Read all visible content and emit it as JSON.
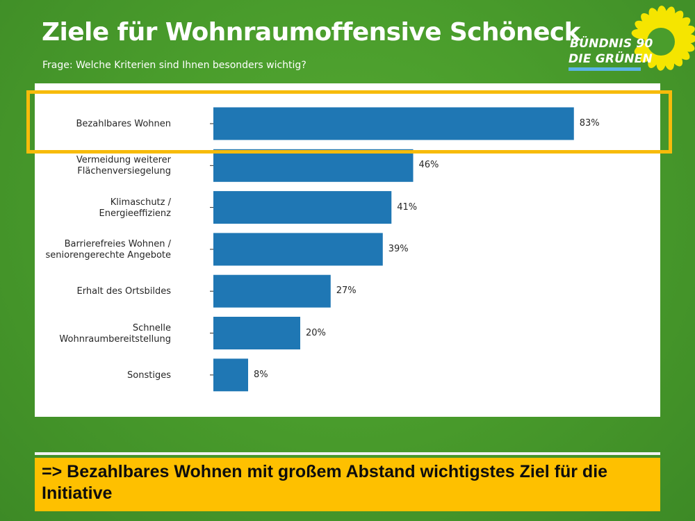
{
  "slide": {
    "title": "Ziele für Wohnraumoffensive Schöneck",
    "subtitle": "Frage: Welche Kriterien sind Ihnen besonders wichtig?",
    "conclusion": "=> Bezahlbares Wohnen mit großem Abstand wichtigstes Ziel für die Initiative"
  },
  "logo": {
    "line1": "BÜNDNIS 90",
    "line2": "DIE GRÜNEN",
    "icon": "sunflower-icon",
    "colors": {
      "petals": "#f5e500",
      "bar": "#5ab4e5"
    }
  },
  "colors": {
    "bar": "#1f77b4",
    "highlight": "#f7bb0b",
    "conclusion_bg": "#fec000"
  },
  "chart_data": {
    "type": "bar",
    "orientation": "horizontal",
    "title": "",
    "xlabel": "",
    "ylabel": "",
    "xlim": [
      0,
      100
    ],
    "grid": false,
    "highlighted_category": "Bezahlbares Wohnen",
    "categories": [
      "Bezahlbares Wohnen",
      "Vermeidung weiterer\nFlächenversiegelung",
      "Klimaschutz /\nEnergieeffizienz",
      "Barrierefreies Wohnen /\nseniorengerechte Angebote",
      "Erhalt des Ortsbildes",
      "Schnelle\nWohnraumbereitstellung",
      "Sonstiges"
    ],
    "values": [
      83,
      46,
      41,
      39,
      27,
      20,
      8
    ],
    "value_labels": [
      "83%",
      "46%",
      "41%",
      "39%",
      "27%",
      "20%",
      "8%"
    ]
  }
}
